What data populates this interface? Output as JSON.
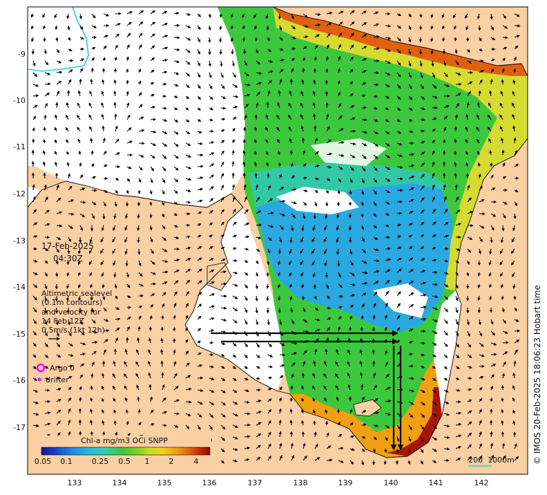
{
  "date_line1": "17-Feb-2025",
  "date_line2": "04:30Z",
  "annotation_lines": [
    "Altimetric sealevel",
    "(0.1m contours)",
    "and velocity for",
    "14 Feb 12Z",
    "0.5m/s (1kt 12h)"
  ],
  "legend": {
    "argo": "Argo 0",
    "drifter": "drifter"
  },
  "colorbar": {
    "title": "Chl-a mg/m3 OCi SNPP",
    "tick_labels": [
      "0.05",
      "0.1",
      "0.25",
      "0.5",
      "1",
      "2",
      "4"
    ],
    "colors": [
      "#0d1a8c",
      "#1540c8",
      "#1a8ce0",
      "#2ab8e8",
      "#30d0b0",
      "#3cc83c",
      "#7ad024",
      "#c8e020",
      "#f0d020",
      "#f0a010",
      "#e06010",
      "#c02008",
      "#8c0c04"
    ]
  },
  "axes": {
    "x_ticks": [
      "133",
      "134",
      "135",
      "136",
      "137",
      "138",
      "139",
      "140",
      "141",
      "142"
    ],
    "y_ticks": [
      "-9",
      "-10",
      "-11",
      "-12",
      "-13",
      "-14",
      "-15",
      "-16",
      "-17"
    ]
  },
  "scale": {
    "label": "200",
    "label2": "1000m"
  },
  "credit": "© IMOS 20-Feb-2025 18:06:23 Hobart time",
  "colors": {
    "land": "#f9cfa4",
    "no_data": "#ffffff",
    "contour": "#000000",
    "argo": "#ff00ff"
  }
}
